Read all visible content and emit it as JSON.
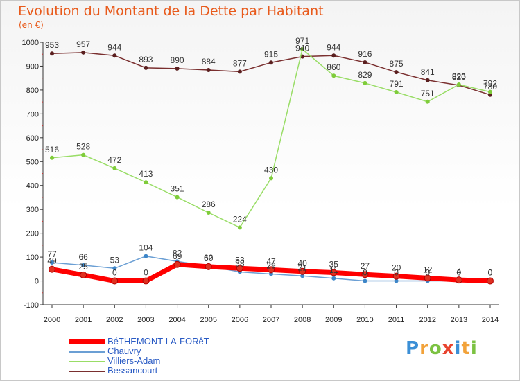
{
  "chart_data": {
    "type": "line",
    "title": "Evolution du Montant de la Dette par Habitant",
    "subtitle": "(en €)",
    "categories": [
      "2000",
      "2001",
      "2002",
      "2003",
      "2004",
      "2005",
      "2006",
      "2007",
      "2008",
      "2009",
      "2010",
      "2011",
      "2012",
      "2013",
      "2014"
    ],
    "ylim": [
      -100,
      1000
    ],
    "yticks": [
      -100,
      0,
      100,
      200,
      300,
      400,
      500,
      600,
      700,
      800,
      900,
      1000
    ],
    "grid": false,
    "legend_position": "bottom-left",
    "series": [
      {
        "name": "BéTHEMONT-LA-FORêT",
        "color": "#ff0000",
        "marker": "#e03020",
        "width": 7,
        "values": [
          49,
          25,
          0,
          0,
          69,
          60,
          53,
          47,
          40,
          35,
          27,
          20,
          12,
          4,
          0
        ],
        "labels": [
          "49",
          "25",
          "0",
          "0",
          "69",
          "60",
          "53",
          "47",
          "40",
          "35",
          "27",
          "20",
          "12",
          "4",
          "0"
        ]
      },
      {
        "name": "Chauvry",
        "color": "#6b9fd4",
        "marker": "#3d86c8",
        "width": 1.5,
        "values": [
          77,
          66,
          53,
          104,
          82,
          62,
          38,
          29,
          21,
          11,
          0,
          0,
          0,
          0,
          0
        ],
        "labels": [
          "77",
          "66",
          "53",
          "104",
          "82",
          "62",
          "38",
          "29",
          "21",
          "11",
          "0",
          "0",
          "0",
          "0",
          "0"
        ]
      },
      {
        "name": "Villiers-Adam",
        "color": "#99dd66",
        "marker": "#7fcc3a",
        "width": 1.5,
        "values": [
          516,
          528,
          472,
          413,
          351,
          286,
          224,
          430,
          971,
          860,
          829,
          791,
          751,
          823,
          792
        ],
        "labels": [
          "516",
          "528",
          "472",
          "413",
          "351",
          "286",
          "224",
          "430",
          "971",
          "860",
          "829",
          "791",
          "751",
          "823",
          "792"
        ]
      },
      {
        "name": "Bessancourt",
        "color": "#7a2f2f",
        "marker": "#5a1f1f",
        "width": 1.5,
        "values": [
          953,
          957,
          944,
          893,
          890,
          884,
          877,
          915,
          940,
          944,
          916,
          875,
          841,
          820,
          780
        ],
        "labels": [
          "953",
          "957",
          "944",
          "893",
          "890",
          "884",
          "877",
          "915",
          "940",
          "944",
          "916",
          "875",
          "841",
          "820",
          "780"
        ]
      }
    ]
  },
  "legend": {
    "items": [
      "BéTHEMONT-LA-FORêT",
      "Chauvry",
      "Villiers-Adam",
      "Bessancourt"
    ]
  },
  "brand": {
    "letters": [
      "P",
      "r",
      "o",
      "x",
      "i",
      "t",
      "i"
    ],
    "colors": [
      "#3b8fd6",
      "#f2a23a",
      "#7cc242",
      "#e8432e",
      "#3b8fd6",
      "#f2a23a",
      "#7cc242"
    ]
  }
}
